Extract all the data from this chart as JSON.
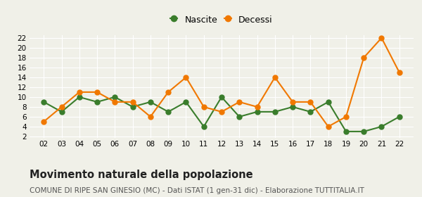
{
  "years": [
    2,
    3,
    4,
    5,
    6,
    7,
    8,
    9,
    10,
    11,
    12,
    13,
    14,
    15,
    16,
    17,
    18,
    19,
    20,
    21,
    22
  ],
  "nascite": [
    9,
    7,
    10,
    9,
    10,
    8,
    9,
    7,
    9,
    4,
    10,
    6,
    7,
    7,
    8,
    7,
    9,
    3,
    3,
    4,
    6
  ],
  "decessi": [
    5,
    8,
    11,
    11,
    9,
    9,
    6,
    11,
    14,
    8,
    7,
    9,
    8,
    14,
    9,
    9,
    4,
    6,
    18,
    22,
    15
  ],
  "nascite_color": "#3a7d2c",
  "decessi_color": "#f07800",
  "background_color": "#f0f0e8",
  "grid_color": "#ffffff",
  "title": "Movimento naturale della popolazione",
  "subtitle": "COMUNE DI RIPE SAN GINESIO (MC) - Dati ISTAT (1 gen-31 dic) - Elaborazione TUTTITALIA.IT",
  "legend_nascite": "Nascite",
  "legend_decessi": "Decessi",
  "ylim_min": 2,
  "ylim_max": 22,
  "yticks": [
    2,
    4,
    6,
    8,
    10,
    12,
    14,
    16,
    18,
    20,
    22
  ],
  "title_fontsize": 10.5,
  "subtitle_fontsize": 7.5,
  "marker_size": 5,
  "linewidth": 1.5
}
